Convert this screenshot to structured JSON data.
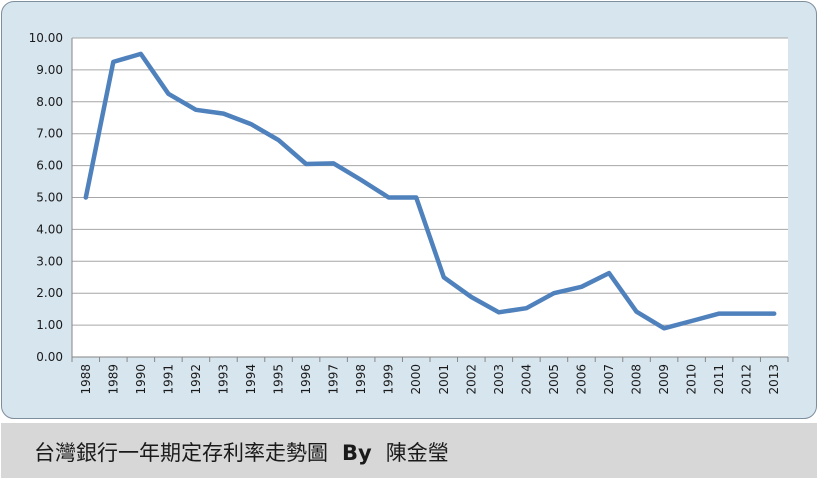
{
  "chart_data": {
    "type": "line",
    "title": "",
    "xlabel": "",
    "ylabel": "",
    "categories": [
      "1988",
      "1989",
      "1990",
      "1991",
      "1992",
      "1993",
      "1994",
      "1995",
      "1996",
      "1997",
      "1998",
      "1999",
      "2000",
      "2001",
      "2002",
      "2003",
      "2004",
      "2005",
      "2006",
      "2007",
      "2008",
      "2009",
      "2010",
      "2011",
      "2012",
      "2013"
    ],
    "series": [
      {
        "values": [
          5.0,
          9.25,
          9.5,
          8.25,
          7.75,
          7.63,
          7.3,
          6.8,
          6.05,
          6.07,
          5.55,
          5.0,
          5.0,
          2.5,
          1.88,
          1.4,
          1.53,
          2.0,
          2.2,
          2.63,
          1.42,
          0.9,
          1.13,
          1.36,
          1.36,
          1.36
        ],
        "color": "#4f81bd"
      }
    ],
    "ylim": [
      0,
      10
    ],
    "yticks": [
      "0.00",
      "1.00",
      "2.00",
      "3.00",
      "4.00",
      "5.00",
      "6.00",
      "7.00",
      "8.00",
      "9.00",
      "10.00"
    ],
    "grid": true,
    "legend": "none",
    "colors": {
      "frame_bg": "#d7e5ef",
      "plot_bg": "#ffffff",
      "grid": "#a6a6a6",
      "line": "#4f81bd",
      "caption_bg": "#d7d7d7"
    }
  },
  "caption": {
    "title": "台灣銀行一年期定存利率走勢圖",
    "by": "By",
    "author": "陳金瑩"
  }
}
